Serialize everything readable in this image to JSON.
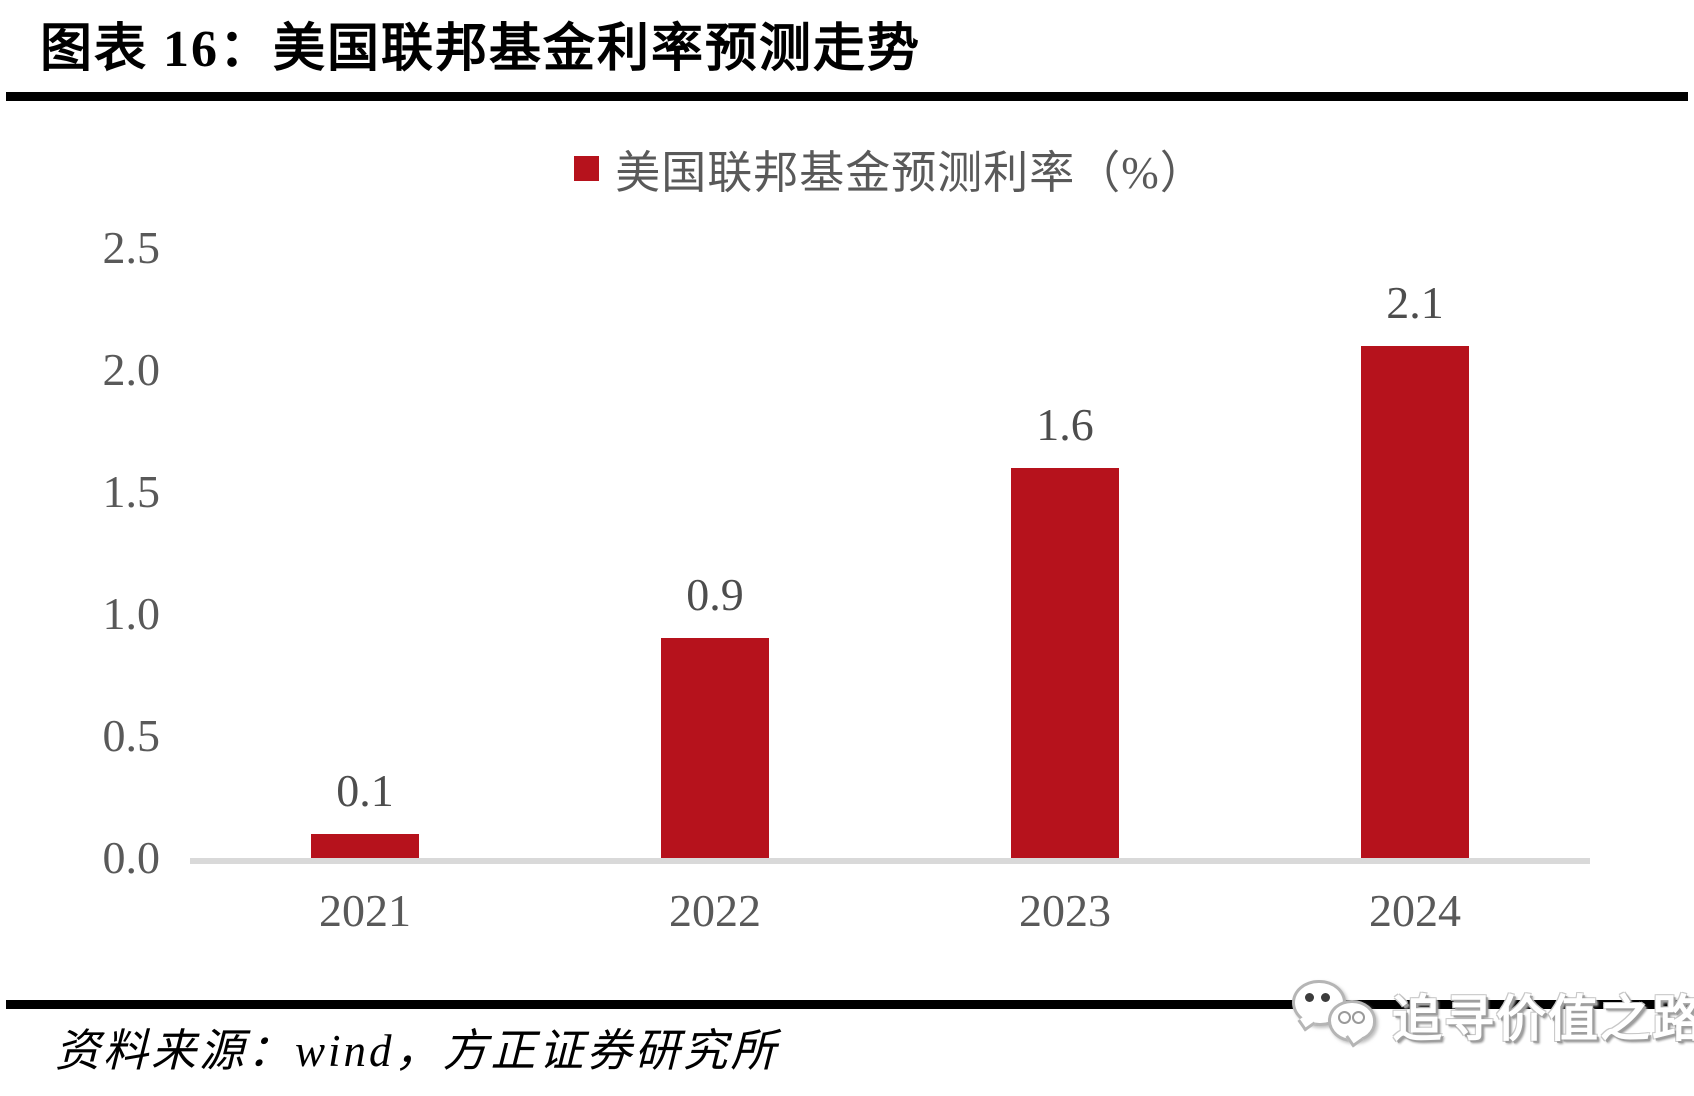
{
  "figure": {
    "title": "图表 16：美国联邦基金利率预测走势",
    "source": "资料来源：wind，方正证券研究所",
    "watermark": {
      "icon": "wechat-icon",
      "text": "追寻价值之路"
    }
  },
  "chart_data": {
    "type": "bar",
    "title": "美国联邦基金利率预测走势",
    "legend": [
      "美国联邦基金预测利率（%）"
    ],
    "legend_position": "top-center",
    "categories": [
      "2021",
      "2022",
      "2023",
      "2024"
    ],
    "values": [
      0.1,
      0.9,
      1.6,
      2.1
    ],
    "data_labels": [
      "0.1",
      "0.9",
      "1.6",
      "2.1"
    ],
    "yticks": [
      "2.5",
      "2.0",
      "1.5",
      "1.0",
      "0.5",
      "0.0"
    ],
    "ylim": [
      0,
      2.5
    ],
    "grid": false,
    "xlabel": "",
    "ylabel": "",
    "bar_color": "#B6121C",
    "data_label_color": "#4D4D4D",
    "axis_text_color": "#595959",
    "baseline_color": "#D9D9D9",
    "divider_color": "#000000"
  }
}
